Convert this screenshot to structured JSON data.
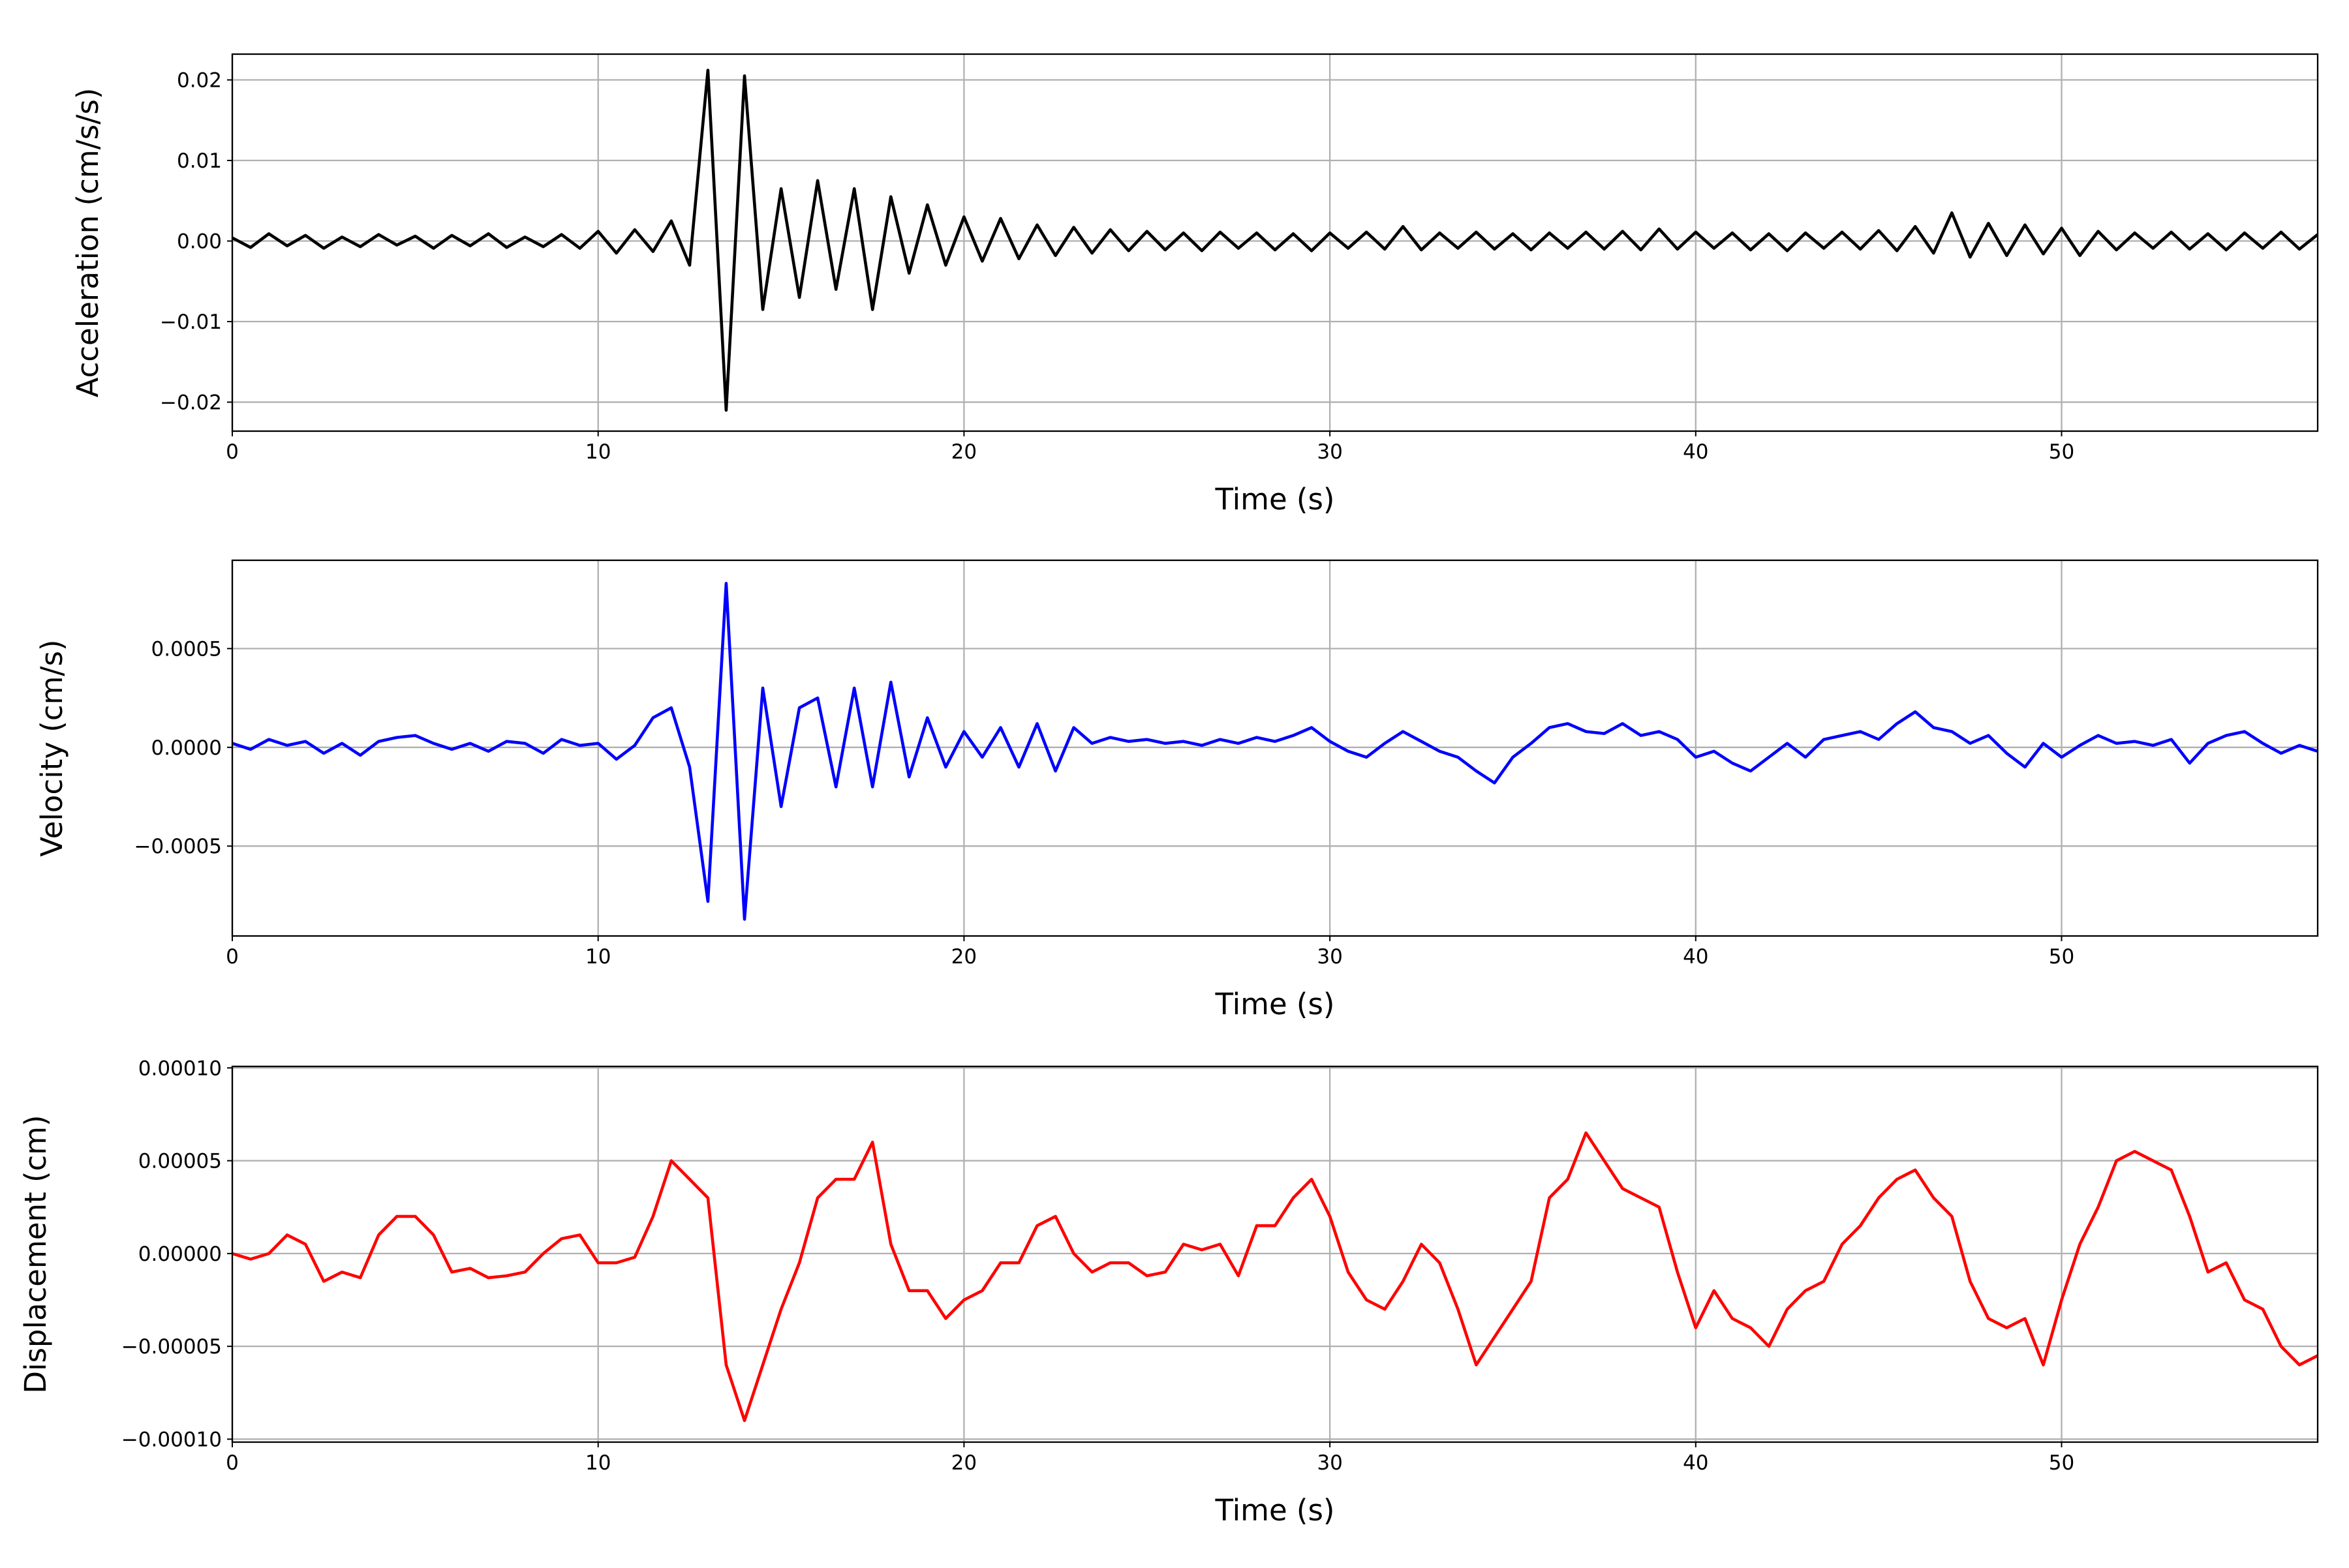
{
  "chart_data": [
    {
      "type": "line",
      "xlabel": "Time (s)",
      "ylabel": "Acceleration (cm/s/s)",
      "color": "#000000",
      "grid": true,
      "xlim": [
        0,
        57
      ],
      "xticks": [
        0,
        10,
        20,
        30,
        40,
        50
      ],
      "ylim": [
        -0.0236,
        0.0232
      ],
      "yticks": [
        {
          "value": -0.02,
          "label": "−0.02"
        },
        {
          "value": -0.01,
          "label": "−0.01"
        },
        {
          "value": 0,
          "label": "0.00"
        },
        {
          "value": 0.01,
          "label": "0.01"
        },
        {
          "value": 0.02,
          "label": "0.02"
        }
      ],
      "x": [
        0,
        0.5,
        1,
        1.5,
        2,
        2.5,
        3,
        3.5,
        4,
        4.5,
        5,
        5.5,
        6,
        6.5,
        7,
        7.5,
        8,
        8.5,
        9,
        9.5,
        10,
        10.5,
        11,
        11.5,
        12,
        12.5,
        13,
        13.5,
        14,
        14.5,
        15,
        15.5,
        16,
        16.5,
        17,
        17.5,
        18,
        18.5,
        19,
        19.5,
        20,
        20.5,
        21,
        21.5,
        22,
        22.5,
        23,
        23.5,
        24,
        24.5,
        25,
        25.5,
        26,
        26.5,
        27,
        27.5,
        28,
        28.5,
        29,
        29.5,
        30,
        30.5,
        31,
        31.5,
        32,
        32.5,
        33,
        33.5,
        34,
        34.5,
        35,
        35.5,
        36,
        36.5,
        37,
        37.5,
        38,
        38.5,
        39,
        39.5,
        40,
        40.5,
        41,
        41.5,
        42,
        42.5,
        43,
        43.5,
        44,
        44.5,
        45,
        45.5,
        46,
        46.5,
        47,
        47.5,
        48,
        48.5,
        49,
        49.5,
        50,
        50.5,
        51,
        51.5,
        52,
        52.5,
        53,
        53.5,
        54,
        54.5,
        55,
        55.5,
        56,
        56.5,
        57
      ],
      "values": [
        0.0004,
        -0.0008,
        0.0009,
        -0.0006,
        0.0007,
        -0.0009,
        0.0005,
        -0.0007,
        0.0008,
        -0.0005,
        0.0006,
        -0.0009,
        0.0007,
        -0.0006,
        0.0009,
        -0.0008,
        0.0005,
        -0.0007,
        0.0008,
        -0.0009,
        0.0012,
        -0.0015,
        0.0014,
        -0.0013,
        0.0025,
        -0.003,
        0.0212,
        -0.021,
        0.0205,
        -0.0085,
        0.0065,
        -0.007,
        0.0075,
        -0.006,
        0.0065,
        -0.0085,
        0.0055,
        -0.004,
        0.0045,
        -0.003,
        0.003,
        -0.0025,
        0.0028,
        -0.0022,
        0.002,
        -0.0018,
        0.0017,
        -0.0015,
        0.0014,
        -0.0012,
        0.0012,
        -0.0011,
        0.001,
        -0.0012,
        0.0011,
        -0.0009,
        0.001,
        -0.0011,
        0.0009,
        -0.0012,
        0.001,
        -0.0009,
        0.0011,
        -0.001,
        0.0018,
        -0.0011,
        0.001,
        -0.0009,
        0.0011,
        -0.001,
        0.0009,
        -0.0011,
        0.001,
        -0.0009,
        0.0011,
        -0.001,
        0.0012,
        -0.0011,
        0.0015,
        -0.001,
        0.0011,
        -0.0009,
        0.001,
        -0.0011,
        0.0009,
        -0.0012,
        0.001,
        -0.0009,
        0.0011,
        -0.001,
        0.0013,
        -0.0012,
        0.0018,
        -0.0015,
        0.0035,
        -0.002,
        0.0022,
        -0.0018,
        0.002,
        -0.0016,
        0.0016,
        -0.0018,
        0.0012,
        -0.0011,
        0.001,
        -0.0009,
        0.0011,
        -0.001,
        0.0009,
        -0.0011,
        0.001,
        -0.0009,
        0.0011,
        -0.001,
        0.0008
      ]
    },
    {
      "type": "line",
      "xlabel": "Time (s)",
      "ylabel": "Velocity (cm/s)",
      "color": "#0000ff",
      "grid": true,
      "xlim": [
        0,
        57
      ],
      "xticks": [
        0,
        10,
        20,
        30,
        40,
        50
      ],
      "ylim": [
        -0.000955,
        0.000947
      ],
      "yticks": [
        {
          "value": -0.0005,
          "label": "−0.0005"
        },
        {
          "value": 0,
          "label": "0.0000"
        },
        {
          "value": 0.0005,
          "label": "0.0005"
        }
      ],
      "x": [
        0,
        0.5,
        1,
        1.5,
        2,
        2.5,
        3,
        3.5,
        4,
        4.5,
        5,
        5.5,
        6,
        6.5,
        7,
        7.5,
        8,
        8.5,
        9,
        9.5,
        10,
        10.5,
        11,
        11.5,
        12,
        12.5,
        13,
        13.5,
        14,
        14.5,
        15,
        15.5,
        16,
        16.5,
        17,
        17.5,
        18,
        18.5,
        19,
        19.5,
        20,
        20.5,
        21,
        21.5,
        22,
        22.5,
        23,
        23.5,
        24,
        24.5,
        25,
        25.5,
        26,
        26.5,
        27,
        27.5,
        28,
        28.5,
        29,
        29.5,
        30,
        30.5,
        31,
        31.5,
        32,
        32.5,
        33,
        33.5,
        34,
        34.5,
        35,
        35.5,
        36,
        36.5,
        37,
        37.5,
        38,
        38.5,
        39,
        39.5,
        40,
        40.5,
        41,
        41.5,
        42,
        42.5,
        43,
        43.5,
        44,
        44.5,
        45,
        45.5,
        46,
        46.5,
        47,
        47.5,
        48,
        48.5,
        49,
        49.5,
        50,
        50.5,
        51,
        51.5,
        52,
        52.5,
        53,
        53.5,
        54,
        54.5,
        55,
        55.5,
        56,
        56.5,
        57
      ],
      "values": [
        2e-05,
        -1e-05,
        4e-05,
        1e-05,
        3e-05,
        -3e-05,
        2e-05,
        -4e-05,
        3e-05,
        5e-05,
        6e-05,
        2e-05,
        -1e-05,
        2e-05,
        -2e-05,
        3e-05,
        2e-05,
        -3e-05,
        4e-05,
        1e-05,
        2e-05,
        -6e-05,
        1e-05,
        0.00015,
        0.0002,
        -0.0001,
        -0.00078,
        0.00083,
        -0.00087,
        0.0003,
        -0.0003,
        0.0002,
        0.00025,
        -0.0002,
        0.0003,
        -0.0002,
        0.00033,
        -0.00015,
        0.00015,
        -0.0001,
        8e-05,
        -5e-05,
        0.0001,
        -0.0001,
        0.00012,
        -0.00012,
        0.0001,
        2e-05,
        5e-05,
        3e-05,
        4e-05,
        2e-05,
        3e-05,
        1e-05,
        4e-05,
        2e-05,
        5e-05,
        3e-05,
        6e-05,
        0.0001,
        3e-05,
        -2e-05,
        -5e-05,
        2e-05,
        8e-05,
        3e-05,
        -2e-05,
        -5e-05,
        -0.00012,
        -0.00018,
        -5e-05,
        2e-05,
        0.0001,
        0.00012,
        8e-05,
        7e-05,
        0.00012,
        6e-05,
        8e-05,
        4e-05,
        -5e-05,
        -2e-05,
        -8e-05,
        -0.00012,
        -5e-05,
        2e-05,
        -5e-05,
        4e-05,
        6e-05,
        8e-05,
        4e-05,
        0.00012,
        0.00018,
        0.0001,
        8e-05,
        2e-05,
        6e-05,
        -3e-05,
        -0.0001,
        2e-05,
        -5e-05,
        1e-05,
        6e-05,
        2e-05,
        3e-05,
        1e-05,
        4e-05,
        -8e-05,
        2e-05,
        6e-05,
        8e-05,
        2e-05,
        -3e-05,
        1e-05,
        -2e-05
      ]
    },
    {
      "type": "line",
      "xlabel": "Time (s)",
      "ylabel": "Displacement (cm)",
      "color": "#ff0000",
      "grid": true,
      "xlim": [
        0,
        57
      ],
      "xticks": [
        0,
        10,
        20,
        30,
        40,
        50
      ],
      "ylim": [
        -0.0001016,
        0.0001008
      ],
      "yticks": [
        {
          "value": -0.0001,
          "label": "−0.00010"
        },
        {
          "value": -5e-05,
          "label": "−0.00005"
        },
        {
          "value": 0,
          "label": "0.00000"
        },
        {
          "value": 5e-05,
          "label": "0.00005"
        },
        {
          "value": 0.0001,
          "label": "0.00010"
        }
      ],
      "x": [
        0,
        0.5,
        1,
        1.5,
        2,
        2.5,
        3,
        3.5,
        4,
        4.5,
        5,
        5.5,
        6,
        6.5,
        7,
        7.5,
        8,
        8.5,
        9,
        9.5,
        10,
        10.5,
        11,
        11.5,
        12,
        12.5,
        13,
        13.5,
        14,
        14.5,
        15,
        15.5,
        16,
        16.5,
        17,
        17.5,
        18,
        18.5,
        19,
        19.5,
        20,
        20.5,
        21,
        21.5,
        22,
        22.5,
        23,
        23.5,
        24,
        24.5,
        25,
        25.5,
        26,
        26.5,
        27,
        27.5,
        28,
        28.5,
        29,
        29.5,
        30,
        30.5,
        31,
        31.5,
        32,
        32.5,
        33,
        33.5,
        34,
        34.5,
        35,
        35.5,
        36,
        36.5,
        37,
        37.5,
        38,
        38.5,
        39,
        39.5,
        40,
        40.5,
        41,
        41.5,
        42,
        42.5,
        43,
        43.5,
        44,
        44.5,
        45,
        45.5,
        46,
        46.5,
        47,
        47.5,
        48,
        48.5,
        49,
        49.5,
        50,
        50.5,
        51,
        51.5,
        52,
        52.5,
        53,
        53.5,
        54,
        54.5,
        55,
        55.5,
        56,
        56.5,
        57
      ],
      "values": [
        0,
        -3e-06,
        0,
        1e-05,
        5e-06,
        -1.5e-05,
        -1e-05,
        -1.3e-05,
        1e-05,
        2e-05,
        2e-05,
        1e-05,
        -1e-05,
        -8e-06,
        -1.3e-05,
        -1.2e-05,
        -1e-05,
        0,
        8e-06,
        1e-05,
        -5e-06,
        -5e-06,
        -2e-06,
        2e-05,
        5e-05,
        4e-05,
        3e-05,
        -6e-05,
        -9e-05,
        -6e-05,
        -3e-05,
        -5e-06,
        3e-05,
        4e-05,
        4e-05,
        6e-05,
        5e-06,
        -2e-05,
        -2e-05,
        -3.5e-05,
        -2.5e-05,
        -2e-05,
        -5e-06,
        -5e-06,
        1.5e-05,
        2e-05,
        0,
        -1e-05,
        -5e-06,
        -5e-06,
        -1.2e-05,
        -1e-05,
        5e-06,
        2e-06,
        5e-06,
        -1.2e-05,
        1.5e-05,
        1.5e-05,
        3e-05,
        4e-05,
        2e-05,
        -1e-05,
        -2.5e-05,
        -3e-05,
        -1.5e-05,
        5e-06,
        -5e-06,
        -3e-05,
        -6e-05,
        -4.5e-05,
        -3e-05,
        -1.5e-05,
        3e-05,
        4e-05,
        6.5e-05,
        5e-05,
        3.5e-05,
        3e-05,
        2.5e-05,
        -1e-05,
        -4e-05,
        -2e-05,
        -3.5e-05,
        -4e-05,
        -5e-05,
        -3e-05,
        -2e-05,
        -1.5e-05,
        5e-06,
        1.5e-05,
        3e-05,
        4e-05,
        4.5e-05,
        3e-05,
        2e-05,
        -1.5e-05,
        -3.5e-05,
        -4e-05,
        -3.5e-05,
        -6e-05,
        -2.5e-05,
        5e-06,
        2.5e-05,
        5e-05,
        5.5e-05,
        5e-05,
        4.5e-05,
        2e-05,
        -1e-05,
        -5e-06,
        -2.5e-05,
        -3e-05,
        -5e-05,
        -6e-05,
        -5.5e-05
      ]
    }
  ]
}
